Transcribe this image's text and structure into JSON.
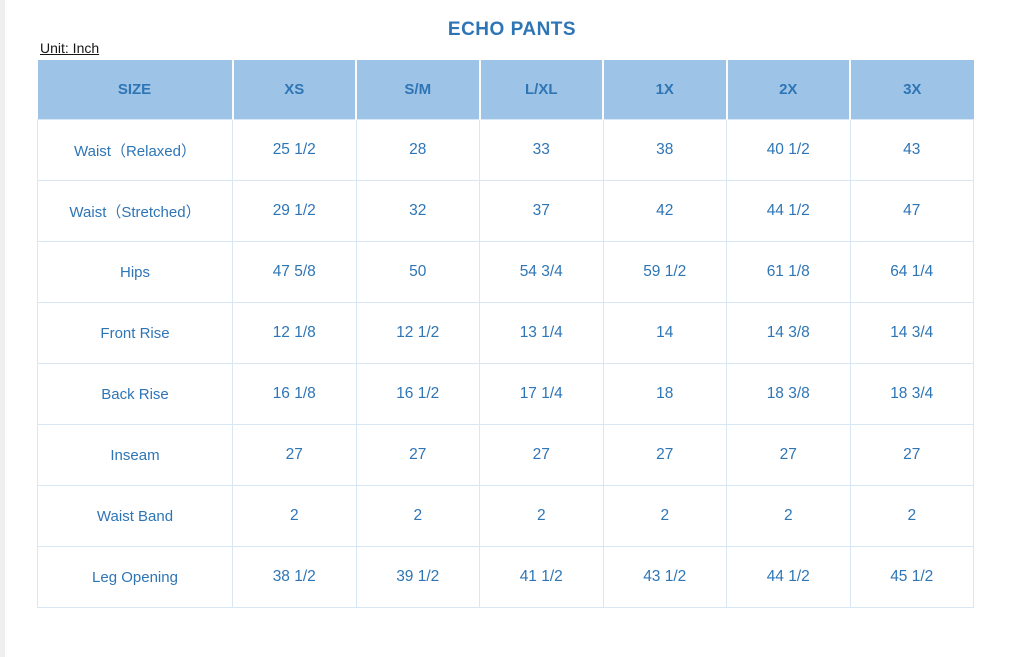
{
  "page": {
    "title": "ECHO PANTS",
    "unit_label": "Unit: Inch"
  },
  "colors": {
    "header_bg": "#9DC3E6",
    "header_text": "#2E75B6",
    "body_text": "#2E75B6",
    "grid_line": "#D9E6F3",
    "title_text": "#2E75B6",
    "unit_text": "#161616"
  },
  "table": {
    "columns": [
      "SIZE",
      "XS",
      "S/M",
      "L/XL",
      "1X",
      "2X",
      "3X"
    ],
    "rows": [
      {
        "label": "Waist（Relaxed）",
        "values": [
          "25 1/2",
          "28",
          "33",
          "38",
          "40 1/2",
          "43"
        ]
      },
      {
        "label": "Waist（Stretched）",
        "values": [
          "29 1/2",
          "32",
          "37",
          "42",
          "44 1/2",
          "47"
        ]
      },
      {
        "label": "Hips",
        "values": [
          "47 5/8",
          "50",
          "54 3/4",
          "59 1/2",
          "61 1/8",
          "64 1/4"
        ]
      },
      {
        "label": "Front Rise",
        "values": [
          "12 1/8",
          "12 1/2",
          "13 1/4",
          "14",
          "14 3/8",
          "14 3/4"
        ]
      },
      {
        "label": "Back Rise",
        "values": [
          "16 1/8",
          "16 1/2",
          "17 1/4",
          "18",
          "18 3/8",
          "18 3/4"
        ]
      },
      {
        "label": "Inseam",
        "values": [
          "27",
          "27",
          "27",
          "27",
          "27",
          "27"
        ]
      },
      {
        "label": "Waist Band",
        "values": [
          "2",
          "2",
          "2",
          "2",
          "2",
          "2"
        ]
      },
      {
        "label": "Leg Opening",
        "values": [
          "38 1/2",
          "39 1/2",
          "41 1/2",
          "43 1/2",
          "44 1/2",
          "45 1/2"
        ]
      }
    ]
  },
  "chart_data": {
    "type": "table",
    "title": "ECHO PANTS",
    "unit": "Inch",
    "columns": [
      "SIZE",
      "XS",
      "S/M",
      "L/XL",
      "1X",
      "2X",
      "3X"
    ],
    "rows": [
      [
        "Waist（Relaxed）",
        "25 1/2",
        "28",
        "33",
        "38",
        "40 1/2",
        "43"
      ],
      [
        "Waist（Stretched）",
        "29 1/2",
        "32",
        "37",
        "42",
        "44 1/2",
        "47"
      ],
      [
        "Hips",
        "47 5/8",
        "50",
        "54 3/4",
        "59 1/2",
        "61 1/8",
        "64 1/4"
      ],
      [
        "Front Rise",
        "12 1/8",
        "12 1/2",
        "13 1/4",
        "14",
        "14 3/8",
        "14 3/4"
      ],
      [
        "Back Rise",
        "16 1/8",
        "16 1/2",
        "17 1/4",
        "18",
        "18 3/8",
        "18 3/4"
      ],
      [
        "Inseam",
        "27",
        "27",
        "27",
        "27",
        "27",
        "27"
      ],
      [
        "Waist Band",
        "2",
        "2",
        "2",
        "2",
        "2",
        "2"
      ],
      [
        "Leg Opening",
        "38 1/2",
        "39 1/2",
        "41 1/2",
        "43 1/2",
        "44 1/2",
        "45 1/2"
      ]
    ]
  }
}
